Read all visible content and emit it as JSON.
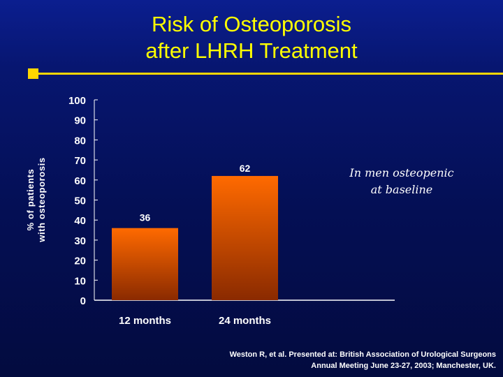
{
  "title": {
    "line1": "Risk of Osteoporosis",
    "line2": "after LHRH Treatment"
  },
  "annotation": {
    "line1": "In men osteopenic",
    "line2": "at baseline"
  },
  "citation": {
    "line1": "Weston R, et al. Presented at: British Association of Urological Surgeons",
    "line2": "Annual Meeting June 23-27, 2003;  Manchester, UK."
  },
  "colors": {
    "title": "#ffff00",
    "accent": "#ffd700",
    "bar_top": "#ff6a00",
    "bar_bottom": "#8a2a00",
    "text": "#ffffff"
  },
  "chart_data": {
    "type": "bar",
    "categories": [
      "12 months",
      "24 months"
    ],
    "values": [
      36,
      62
    ],
    "data_labels": [
      "36",
      "62"
    ],
    "ylabel": [
      "% of patients",
      "with osteoporosis"
    ],
    "ylim": [
      0,
      100
    ],
    "yticks": [
      0,
      10,
      20,
      30,
      40,
      50,
      60,
      70,
      80,
      90,
      100
    ],
    "grid": false,
    "legend": "none"
  }
}
